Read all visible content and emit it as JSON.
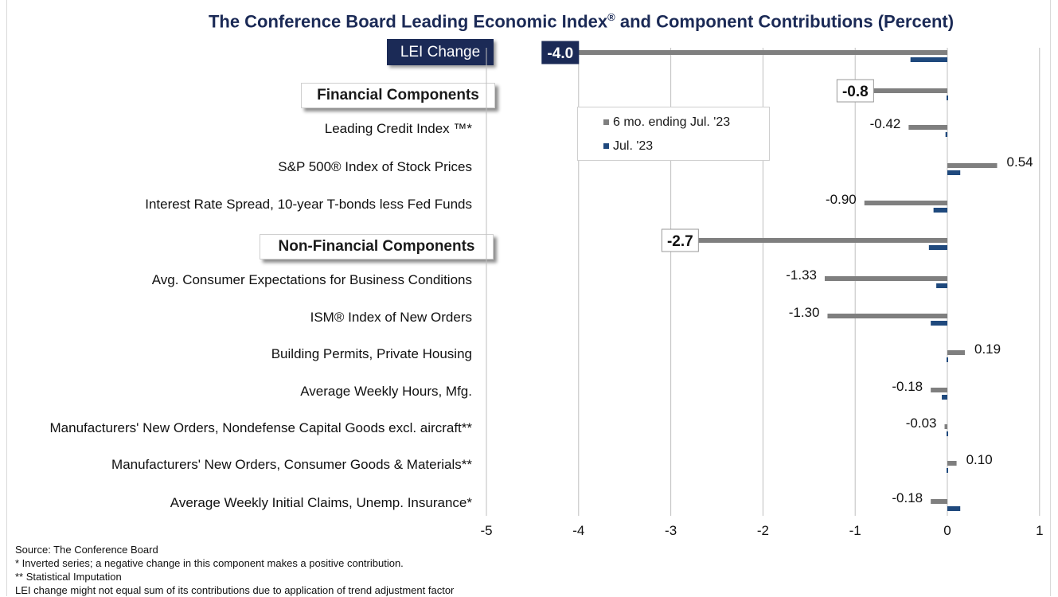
{
  "chart_data": {
    "type": "bar",
    "orientation": "horizontal",
    "title": "The Conference Board Leading Economic Index",
    "title_suffix": " and Component Contributions (Percent)",
    "title_mark": "®",
    "xlim": [
      -5,
      1
    ],
    "x_ticks": [
      "-5",
      "-4",
      "-3",
      "-2",
      "-1",
      "0",
      "1"
    ],
    "grid": "vertical",
    "legend_position": "inside-top-center",
    "series": [
      {
        "name": "6 mo. ending Jul. '23",
        "color": "#7f7f7f"
      },
      {
        "name": "Jul. '23",
        "color": "#1f497d"
      }
    ],
    "rows": [
      {
        "label": "",
        "six_mo": -4.0,
        "jul": -0.4,
        "value_label": "-4.0",
        "callout": "dark",
        "header": "LEI Change"
      },
      {
        "label": "",
        "six_mo": -0.8,
        "jul": 0.0,
        "value_label": "-0.8",
        "callout": "light",
        "header": "Financial Components"
      },
      {
        "label": "Leading Credit Index ™*",
        "six_mo": -0.42,
        "jul": -0.02,
        "value_label": "-0.42"
      },
      {
        "label": "S&P 500® Index of Stock Prices",
        "six_mo": 0.54,
        "jul": 0.14,
        "value_label": "0.54"
      },
      {
        "label": "Interest Rate Spread, 10-year T-bonds less Fed Funds",
        "six_mo": -0.9,
        "jul": -0.15,
        "value_label": "-0.90"
      },
      {
        "label": "",
        "six_mo": -2.7,
        "jul": -0.2,
        "value_label": "-2.7",
        "callout": "light",
        "header": "Non-Financial Components"
      },
      {
        "label": "Avg. Consumer Expectations for Business Conditions",
        "six_mo": -1.33,
        "jul": -0.12,
        "value_label": "-1.33"
      },
      {
        "label": "ISM® Index of New Orders",
        "six_mo": -1.3,
        "jul": -0.18,
        "value_label": "-1.30"
      },
      {
        "label": "Building Permits, Private Housing",
        "six_mo": 0.19,
        "jul": 0.0,
        "value_label": "0.19"
      },
      {
        "label": "Average Weekly Hours, Mfg.",
        "six_mo": -0.18,
        "jul": -0.06,
        "value_label": "-0.18"
      },
      {
        "label": "Manufacturers' New Orders, Nondefense Capital Goods excl. aircraft**",
        "six_mo": -0.03,
        "jul": 0.0,
        "value_label": "-0.03"
      },
      {
        "label": "Manufacturers' New Orders, Consumer Goods & Materials**",
        "six_mo": 0.1,
        "jul": 0.0,
        "value_label": "0.10"
      },
      {
        "label": "Average Weekly Initial Claims, Unemp. Insurance*",
        "six_mo": -0.18,
        "jul": 0.14,
        "value_label": "-0.18"
      }
    ]
  },
  "sources": [
    "Source: The Conference Board",
    "*  Inverted series; a negative change in this component makes a positive contribution.",
    "**  Statistical Imputation",
    "LEI change might not equal sum of    its contributions due to application of trend adjustment factor"
  ]
}
